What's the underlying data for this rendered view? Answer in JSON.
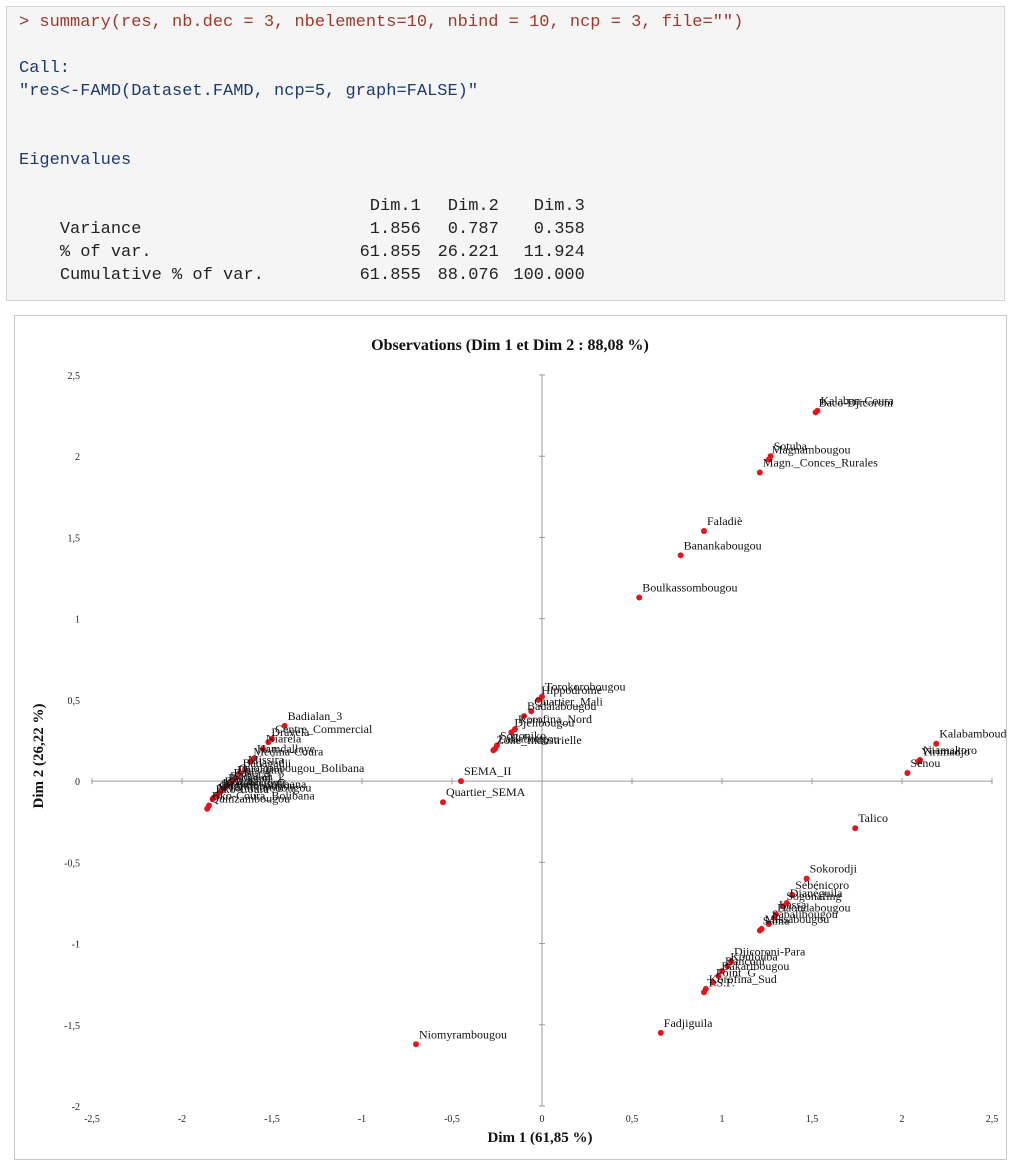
{
  "console": {
    "command": "> summary(res, nb.dec = 3, nbelements=10, nbind = 10, ncp = 3, file=\"\")",
    "call_label": "Call:",
    "call_text": "\"res<-FAMD(Dataset.FAMD, ncp=5, graph=FALSE)\"",
    "eigen_title": "Eigenvalues",
    "eigen_headers": [
      "Dim.1",
      "Dim.2",
      "Dim.3"
    ],
    "eigen_rows": [
      {
        "label": "Variance",
        "values": [
          "1.856",
          "0.787",
          "0.358"
        ]
      },
      {
        "label": "% of var.",
        "values": [
          "61.855",
          "26.221",
          "11.924"
        ]
      },
      {
        "label": "Cumulative % of var.",
        "values": [
          "61.855",
          "88.076",
          "100.000"
        ]
      }
    ]
  },
  "chart_data": {
    "type": "scatter",
    "title": "Observations (Dim 1 et Dim 2 : 88,08 %)",
    "xlabel": "Dim 1 (61,85 %)",
    "ylabel": "Dim 2 (26,22 %)",
    "xlim": [
      -2.5,
      2.5
    ],
    "ylim": [
      -2,
      2.5
    ],
    "xticks": [
      "-2,5",
      "-2",
      "-1,5",
      "-1",
      "-0,5",
      "0",
      "0,5",
      "1",
      "1,5",
      "2",
      "2,5"
    ],
    "yticks": [
      "-2",
      "-1,5",
      "-1",
      "-0,5",
      "0",
      "0,5",
      "1",
      "1,5",
      "2",
      "2,5"
    ],
    "point_color": "#e8141c",
    "points": [
      {
        "label": "Kalaban-Coura",
        "x": 1.53,
        "y": 2.28
      },
      {
        "label": "Baco-Djicoroni",
        "x": 1.52,
        "y": 2.27
      },
      {
        "label": "Sotuba",
        "x": 1.27,
        "y": 2.0
      },
      {
        "label": "Magnambougou",
        "x": 1.26,
        "y": 1.98
      },
      {
        "label": "Magn._Conces_Rurales",
        "x": 1.21,
        "y": 1.9
      },
      {
        "label": "Faladiè",
        "x": 0.9,
        "y": 1.54
      },
      {
        "label": "Banankabougou",
        "x": 0.77,
        "y": 1.39
      },
      {
        "label": "Boulkassombougou",
        "x": 0.54,
        "y": 1.13
      },
      {
        "label": "Torokorobougou",
        "x": 0.0,
        "y": 0.52
      },
      {
        "label": "Hippodrome",
        "x": -0.02,
        "y": 0.5
      },
      {
        "label": "Quartier_Mali",
        "x": -0.06,
        "y": 0.43
      },
      {
        "label": "Badalabougou",
        "x": -0.1,
        "y": 0.4
      },
      {
        "label": "Korofina_Nord",
        "x": -0.15,
        "y": 0.32
      },
      {
        "label": "Djélibougou",
        "x": -0.17,
        "y": 0.3
      },
      {
        "label": "Sogoniko",
        "x": -0.25,
        "y": 0.22
      },
      {
        "label": "Laflabougou",
        "x": -0.26,
        "y": 0.2
      },
      {
        "label": "Zone_Industrielle",
        "x": -0.27,
        "y": 0.19
      },
      {
        "label": "SEMA_II",
        "x": -0.45,
        "y": 0.0
      },
      {
        "label": "Quartier_SEMA",
        "x": -0.55,
        "y": -0.13
      },
      {
        "label": "Niomyrambougou",
        "x": -0.7,
        "y": -1.62
      },
      {
        "label": "Kalabamboudou",
        "x": 2.19,
        "y": 0.23
      },
      {
        "label": "Niamakoro",
        "x": 2.1,
        "y": 0.13
      },
      {
        "label": "Yirimadjo",
        "x": 2.09,
        "y": 0.12
      },
      {
        "label": "Sénou",
        "x": 2.03,
        "y": 0.05
      },
      {
        "label": "Talico",
        "x": 1.74,
        "y": -0.29
      },
      {
        "label": "Sokorodji",
        "x": 1.47,
        "y": -0.6
      },
      {
        "label": "Sébénicoro",
        "x": 1.39,
        "y": -0.7
      },
      {
        "label": "Dianéguila",
        "x": 1.36,
        "y": -0.75
      },
      {
        "label": "Sogonafing",
        "x": 1.34,
        "y": -0.77
      },
      {
        "label": "Lassa",
        "x": 1.3,
        "y": -0.82
      },
      {
        "label": "Daoudabougou",
        "x": 1.29,
        "y": -0.84
      },
      {
        "label": "Sabalibougou",
        "x": 1.26,
        "y": -0.88
      },
      {
        "label": "Missabougou",
        "x": 1.22,
        "y": -0.91
      },
      {
        "label": "Sama",
        "x": 1.21,
        "y": -0.92
      },
      {
        "label": "Djicoroni-Para",
        "x": 1.05,
        "y": -1.11
      },
      {
        "label": "Koulouba",
        "x": 1.03,
        "y": -1.14
      },
      {
        "label": "Banconi",
        "x": 1.0,
        "y": -1.17
      },
      {
        "label": "Bakaribougou",
        "x": 0.98,
        "y": -1.2
      },
      {
        "label": "Point_G",
        "x": 0.95,
        "y": -1.24
      },
      {
        "label": "Korofina_Sud",
        "x": 0.91,
        "y": -1.28
      },
      {
        "label": "T.S.F.",
        "x": 0.9,
        "y": -1.3
      },
      {
        "label": "Fadjiguila",
        "x": 0.66,
        "y": -1.55
      },
      {
        "label": "Badialan_3",
        "x": -1.43,
        "y": 0.34
      },
      {
        "label": "Centre_Commercial",
        "x": -1.5,
        "y": 0.26
      },
      {
        "label": "Dravela",
        "x": -1.52,
        "y": 0.24
      },
      {
        "label": "Niaréla",
        "x": -1.55,
        "y": 0.2
      },
      {
        "label": "Hamdallaye",
        "x": -1.6,
        "y": 0.14
      },
      {
        "label": "Médina-Coura",
        "x": -1.62,
        "y": 0.12
      },
      {
        "label": "Missira",
        "x": -1.65,
        "y": 0.07
      },
      {
        "label": "Badagadji",
        "x": -1.68,
        "y": 0.05
      },
      {
        "label": "Ouolofobougou_Bolibana",
        "x": -1.7,
        "y": 0.02
      },
      {
        "label": "Darsalam",
        "x": -1.71,
        "y": 0.01
      },
      {
        "label": "Base_A",
        "x": -1.73,
        "y": -0.01
      },
      {
        "label": "Badialan_2",
        "x": -1.75,
        "y": -0.03
      },
      {
        "label": "Badialan_1",
        "x": -1.76,
        "y": -0.04
      },
      {
        "label": "Bozola",
        "x": -1.78,
        "y": -0.06
      },
      {
        "label": "Kodabougou",
        "x": -1.79,
        "y": -0.07
      },
      {
        "label": "Dravela-Bolibana",
        "x": -1.8,
        "y": -0.08
      },
      {
        "label": "Ouolofobougou",
        "x": -1.81,
        "y": -0.09
      },
      {
        "label": "N'Tomikorobougou",
        "x": -1.82,
        "y": -0.1
      },
      {
        "label": "Bko-Coura",
        "x": -1.83,
        "y": -0.11
      },
      {
        "label": "Quinzambougou",
        "x": -1.86,
        "y": -0.17
      },
      {
        "label": "Bko-Coura_Bolibana",
        "x": -1.85,
        "y": -0.15
      }
    ]
  }
}
